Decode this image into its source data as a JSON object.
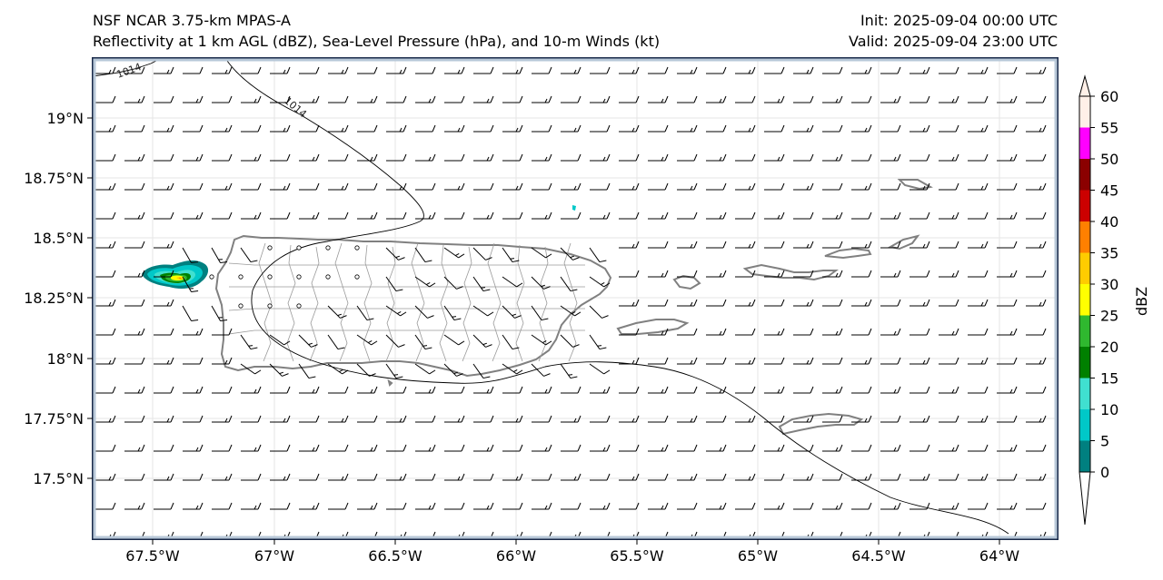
{
  "header": {
    "model_title": "NSF NCAR 3.75-km MPAS-A",
    "product_title": "Reflectivity at 1 km AGL (dBZ), Sea-Level Pressure (hPa), and 10-m Winds (kt)",
    "init": "Init: 2025-09-04 00:00 UTC",
    "valid": "Valid: 2025-09-04 23:00 UTC"
  },
  "axes": {
    "lat_labels": [
      "19°N",
      "18.75°N",
      "18.5°N",
      "18.25°N",
      "18°N",
      "17.75°N",
      "17.5°N"
    ],
    "lon_labels": [
      "67.5°W",
      "67°W",
      "66.5°W",
      "66°W",
      "65.5°W",
      "65°W",
      "64.5°W",
      "64°W"
    ]
  },
  "isobars": [
    {
      "value": "1014",
      "label_text": "1014"
    },
    {
      "value": "1014",
      "label_text": "1014"
    }
  ],
  "colorbar": {
    "title": "dBZ",
    "ticks": [
      "60",
      "55",
      "50",
      "45",
      "40",
      "35",
      "30",
      "25",
      "20",
      "15",
      "10",
      "5",
      "0"
    ],
    "colors": [
      "#fff0e8",
      "#ff00ff",
      "#8b0000",
      "#cc0000",
      "#ff8000",
      "#ffcc00",
      "#ffff00",
      "#2fb82f",
      "#008000",
      "#40e0d0",
      "#00c8c8",
      "#008080"
    ]
  },
  "colors": {
    "coast": "#808080",
    "border": "#000000",
    "barb": "#000000",
    "frame": "#1a2a4a"
  }
}
